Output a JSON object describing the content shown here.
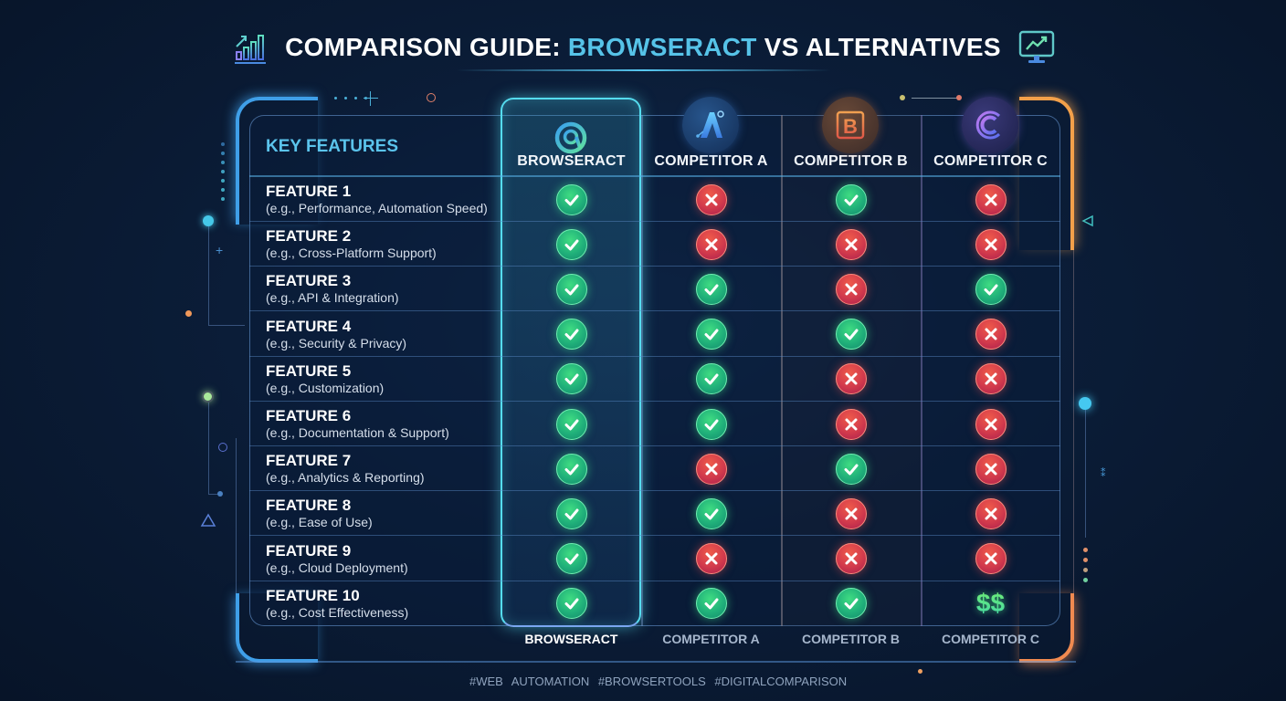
{
  "header": {
    "title_prefix": "COMPARISON GUIDE: ",
    "title_highlight": "BROWSERACT",
    "title_suffix": " VS ALTERNATIVES",
    "left_icon": "bar-chart-growth-icon",
    "right_icon": "monitor-trend-icon"
  },
  "table": {
    "key_features_label": "KEY FEATURES",
    "columns": [
      {
        "label": "BROWSERACT",
        "logo": "browseract-logo",
        "highlighted": true
      },
      {
        "label": "COMPETITOR A",
        "logo": "A"
      },
      {
        "label": "COMPETITOR B",
        "logo": "B"
      },
      {
        "label": "COMPETITOR C",
        "logo": "C"
      }
    ],
    "rows": [
      {
        "title": "FEATURE 1",
        "subtitle": "(e.g., Performance, Automation Speed)",
        "values": [
          "check",
          "cross",
          "check",
          "cross"
        ]
      },
      {
        "title": "FEATURE 2",
        "subtitle": "(e.g., Cross-Platform Support)",
        "values": [
          "check",
          "cross",
          "cross",
          "cross"
        ]
      },
      {
        "title": "FEATURE 3",
        "subtitle": "(e.g., API & Integration)",
        "values": [
          "check",
          "check",
          "cross",
          "check"
        ]
      },
      {
        "title": "FEATURE 4",
        "subtitle": "(e.g., Security & Privacy)",
        "values": [
          "check",
          "check",
          "check",
          "cross"
        ]
      },
      {
        "title": "FEATURE 5",
        "subtitle": "(e.g., Customization)",
        "values": [
          "check",
          "check",
          "cross",
          "cross"
        ]
      },
      {
        "title": "FEATURE 6",
        "subtitle": "(e.g., Documentation & Support)",
        "values": [
          "check",
          "check",
          "cross",
          "cross"
        ]
      },
      {
        "title": "FEATURE 7",
        "subtitle": "(e.g., Analytics & Reporting)",
        "values": [
          "check",
          "cross",
          "check",
          "cross"
        ]
      },
      {
        "title": "FEATURE 8",
        "subtitle": "(e.g., Ease of Use)",
        "values": [
          "check",
          "check",
          "cross",
          "cross"
        ]
      },
      {
        "title": "FEATURE 9",
        "subtitle": "(e.g., Cloud Deployment)",
        "values": [
          "check",
          "cross",
          "cross",
          "cross"
        ]
      },
      {
        "title": "FEATURE 10",
        "subtitle": "(e.g., Cost Effectiveness)",
        "values": [
          "check",
          "check",
          "check",
          "$$"
        ]
      }
    ]
  },
  "footer": {
    "column_labels": [
      "BROWSERACT",
      "COMPETITOR A",
      "COMPETITOR B",
      "COMPETITOR C"
    ],
    "hashtags": "#WEB AUTOMATION  #BROWSERTOOLS  #DIGITALCOMPARISON"
  },
  "colors": {
    "background": "#0b1d38",
    "accent_cyan": "#56c3e8",
    "highlight_border": "#55dcef",
    "check_green": "#20b07a",
    "cross_red": "#d23a4c",
    "bracket_blue": "#3f9fe8",
    "bracket_orange": "#f3a04a",
    "competitor_a": "#2f7fd6",
    "competitor_b": "#e8874a",
    "competitor_c": "#8a6ff0"
  }
}
